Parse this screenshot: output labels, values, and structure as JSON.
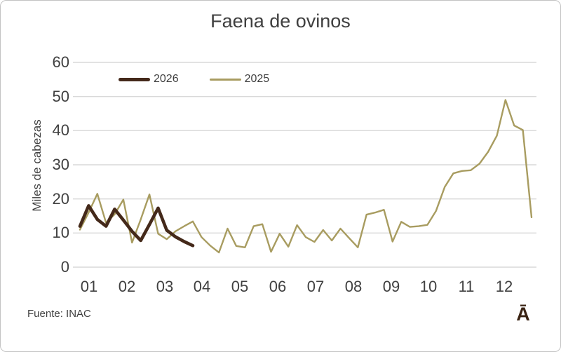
{
  "chart": {
    "title": "Faena de ovinos",
    "y_axis_title": "Miles de cabezas",
    "source": "Fuente: INAC",
    "watermark": "Ā",
    "colors": {
      "grid": "#d9d9d9",
      "text": "#404040",
      "series_2026": "#44291a",
      "series_2025": "#a89c60",
      "watermark": "#3a2313",
      "border": "#c3c3c3"
    }
  },
  "chart_data": {
    "type": "line",
    "title": "Faena de ovinos",
    "xlabel": "",
    "ylabel": "Miles de cabezas",
    "x_unit": "weeks of the year, axis labeled by month",
    "x_tick_labels": [
      "01",
      "02",
      "03",
      "04",
      "05",
      "06",
      "07",
      "08",
      "09",
      "10",
      "11",
      "12"
    ],
    "y_ticks": [
      0,
      10,
      20,
      30,
      40,
      50,
      60
    ],
    "ylim": [
      0,
      60
    ],
    "grid": "horizontal-only",
    "legend_position": "top-left-inside",
    "source": "Fuente: INAC",
    "series": [
      {
        "name": "2026",
        "color": "#44291a",
        "line_width": 4.6,
        "values": [
          12.0,
          18.0,
          14.0,
          12.0,
          17.0,
          13.8,
          10.5,
          7.8,
          12.5,
          17.3,
          10.8,
          8.9,
          7.5,
          6.3
        ]
      },
      {
        "name": "2025",
        "color": "#a89c60",
        "line_width": 2.4,
        "values": [
          11.0,
          16.0,
          21.5,
          13.0,
          15.5,
          19.8,
          7.2,
          14.0,
          21.3,
          9.8,
          8.2,
          10.5,
          12.0,
          13.4,
          8.8,
          6.3,
          4.3,
          11.3,
          6.2,
          5.8,
          12.0,
          12.6,
          4.5,
          9.8,
          6.0,
          12.3,
          8.8,
          7.4,
          10.9,
          7.8,
          11.3,
          8.5,
          5.8,
          15.4,
          16.0,
          16.8,
          7.5,
          13.3,
          11.8,
          12.0,
          12.4,
          16.5,
          23.5,
          27.5,
          28.2,
          28.4,
          30.3,
          33.8,
          38.5,
          49.0,
          41.5,
          40.2,
          14.6
        ]
      }
    ]
  }
}
